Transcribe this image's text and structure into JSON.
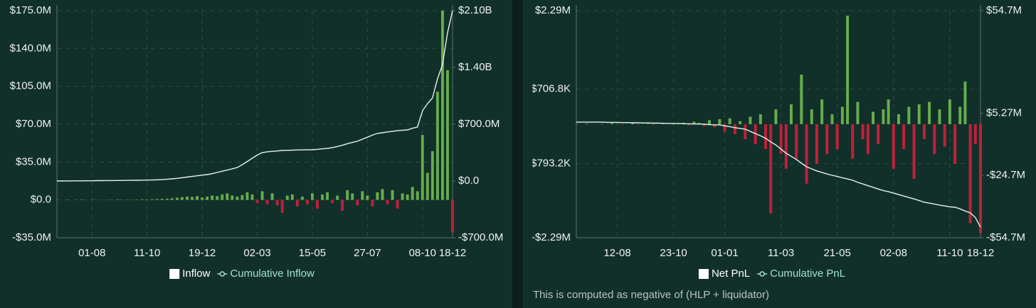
{
  "chart_data": [
    {
      "type": "combo",
      "categories": [
        null,
        null,
        null,
        null,
        null,
        null,
        null,
        "01-08",
        null,
        null,
        null,
        null,
        null,
        null,
        null,
        null,
        null,
        null,
        "11-10",
        null,
        null,
        null,
        null,
        null,
        null,
        null,
        null,
        null,
        null,
        "19-12",
        null,
        null,
        null,
        null,
        null,
        null,
        null,
        null,
        null,
        null,
        "02-03",
        null,
        null,
        null,
        null,
        null,
        null,
        null,
        null,
        null,
        null,
        "15-05",
        null,
        null,
        null,
        null,
        null,
        null,
        null,
        null,
        null,
        null,
        "27-07",
        null,
        null,
        null,
        null,
        null,
        null,
        null,
        null,
        null,
        null,
        "08-10",
        null,
        null,
        null,
        null,
        null,
        "18-12"
      ],
      "series": [
        {
          "name": "Inflow",
          "type": "bar",
          "color": "#67ad4c",
          "negative_color": "#c21f3a",
          "legend_color": "#ffffff",
          "values": [
            100000,
            0,
            200000,
            0,
            100000,
            300000,
            0,
            200000,
            100000,
            0,
            200000,
            100000,
            300000,
            200000,
            100000,
            200000,
            300000,
            500000,
            400000,
            600000,
            800000,
            1000000,
            1200000,
            1500000,
            2000000,
            2500000,
            3000000,
            2800000,
            3500000,
            2200000,
            3000000,
            4000000,
            3500000,
            5000000,
            6000000,
            4000000,
            3000000,
            4500000,
            7000000,
            5000000,
            -3000000,
            8000000,
            -4000000,
            6000000,
            -5000000,
            -12000000,
            4000000,
            5000000,
            -6000000,
            3000000,
            -4000000,
            6000000,
            -8000000,
            5000000,
            7000000,
            -3000000,
            4000000,
            -10000000,
            9000000,
            6000000,
            -5000000,
            8000000,
            4000000,
            -6000000,
            7000000,
            10000000,
            -4000000,
            9000000,
            -8000000,
            6000000,
            5000000,
            12000000,
            8000000,
            60000000,
            25000000,
            45000000,
            100000000,
            175000000,
            120000000,
            -30000000
          ]
        },
        {
          "name": "Cumulative Inflow",
          "type": "line",
          "axis": "y2",
          "color": "#e4f3ec",
          "legend_color": "#9fe3c9",
          "values": [
            0,
            0,
            1000000,
            1000000,
            2000000,
            2000000,
            3000000,
            3000000,
            4000000,
            4000000,
            5000000,
            5000000,
            6000000,
            6000000,
            7000000,
            8000000,
            9000000,
            10000000,
            11000000,
            12000000,
            14000000,
            17000000,
            21000000,
            26000000,
            32000000,
            40000000,
            48000000,
            56000000,
            64000000,
            72000000,
            79000000,
            90000000,
            105000000,
            120000000,
            135000000,
            150000000,
            166000000,
            200000000,
            240000000,
            280000000,
            320000000,
            350000000,
            360000000,
            365000000,
            370000000,
            376000000,
            378000000,
            380000000,
            382000000,
            383000000,
            384000000,
            385000000,
            390000000,
            396000000,
            402000000,
            411000000,
            425000000,
            440000000,
            460000000,
            475000000,
            490000000,
            515000000,
            540000000,
            565000000,
            586000000,
            595000000,
            605000000,
            612000000,
            620000000,
            625000000,
            630000000,
            650000000,
            665000000,
            866000000,
            954000000,
            1024000000,
            1260000000,
            1435000000,
            1829000000,
            2100000000
          ]
        }
      ],
      "ylim": [
        -35000000,
        175000000
      ],
      "yticks": [
        {
          "value": -35000000,
          "label": "-$35.0M"
        },
        {
          "value": 0,
          "label": "$0.0"
        },
        {
          "value": 35000000,
          "label": "$35.0M"
        },
        {
          "value": 70000000,
          "label": "$70.0M"
        },
        {
          "value": 105000000,
          "label": "$105.0M"
        },
        {
          "value": 140000000,
          "label": "$140.0M"
        },
        {
          "value": 175000000,
          "label": "$175.0M"
        }
      ],
      "y2lim": [
        -700000000,
        2100000000
      ],
      "y2ticks": [
        {
          "value": -700000000,
          "label": "-$700.0M"
        },
        {
          "value": 0,
          "label": "$0.0"
        },
        {
          "value": 700000000,
          "label": "$700.0M"
        },
        {
          "value": 1400000000,
          "label": "$1.40B"
        },
        {
          "value": 2100000000,
          "label": "$2.10B"
        }
      ],
      "grid": true
    },
    {
      "type": "combo",
      "categories": [
        null,
        null,
        null,
        null,
        null,
        null,
        null,
        null,
        "12-08",
        null,
        null,
        null,
        null,
        null,
        null,
        null,
        null,
        null,
        null,
        "23-10",
        null,
        null,
        null,
        null,
        null,
        null,
        null,
        null,
        null,
        "01-01",
        null,
        null,
        null,
        null,
        null,
        null,
        null,
        null,
        null,
        null,
        "11-03",
        null,
        null,
        null,
        null,
        null,
        null,
        null,
        null,
        null,
        null,
        "21-05",
        null,
        null,
        null,
        null,
        null,
        null,
        null,
        null,
        null,
        null,
        "02-08",
        null,
        null,
        null,
        null,
        null,
        null,
        null,
        null,
        null,
        null,
        "11-10",
        null,
        null,
        null,
        null,
        null,
        "18-12"
      ],
      "series": [
        {
          "name": "Net PnL",
          "type": "bar",
          "color": "#67ad4c",
          "negative_color": "#c21f3a",
          "legend_color": "#ffffff",
          "values": [
            5000,
            0,
            10000,
            -5000,
            0,
            8000,
            -3000,
            20000,
            5000,
            -10000,
            0,
            15000,
            -8000,
            5000,
            10000,
            -12000,
            0,
            6000,
            -5000,
            8000,
            15000,
            30000,
            -20000,
            50000,
            25000,
            -40000,
            80000,
            -60000,
            100000,
            -150000,
            120000,
            -200000,
            60000,
            -300000,
            150000,
            -400000,
            200000,
            -500000,
            -1800000,
            300000,
            -600000,
            -900000,
            400000,
            -700000,
            1000000,
            -1200000,
            300000,
            -800000,
            500000,
            -600000,
            200000,
            -500000,
            350000,
            2190000,
            -700000,
            450000,
            -300000,
            -600000,
            250000,
            -400000,
            300000,
            500000,
            -900000,
            200000,
            -500000,
            350000,
            -1100000,
            400000,
            -300000,
            450000,
            -600000,
            300000,
            -450000,
            500000,
            -800000,
            350000,
            860000,
            -2000000,
            -400000,
            -2200000
          ]
        },
        {
          "name": "Cumulative PnL",
          "type": "line",
          "axis": "y2",
          "color": "#e4f3ec",
          "legend_color": "#9fe3c9",
          "values": [
            1000000,
            1000000,
            1000000,
            1000000,
            1000000,
            1000000,
            900000,
            900000,
            900000,
            800000,
            800000,
            700000,
            700000,
            600000,
            600000,
            500000,
            500000,
            400000,
            400000,
            300000,
            300000,
            200000,
            200000,
            100000,
            100000,
            0,
            -200000,
            -300000,
            -300000,
            -800000,
            -1200000,
            -1700000,
            -2000000,
            -2400000,
            -3500000,
            -4500000,
            -5600000,
            -6800000,
            -8500000,
            -10000000,
            -12000000,
            -14000000,
            -15500000,
            -17000000,
            -18800000,
            -20500000,
            -21500000,
            -22500000,
            -23200000,
            -24000000,
            -24600000,
            -25200000,
            -25800000,
            -26400000,
            -27000000,
            -28000000,
            -28800000,
            -29600000,
            -30400000,
            -31200000,
            -32000000,
            -32500000,
            -33200000,
            -33900000,
            -34600000,
            -35300000,
            -36000000,
            -36800000,
            -37600000,
            -38000000,
            -38500000,
            -39000000,
            -39400000,
            -39800000,
            -40000000,
            -40800000,
            -41800000,
            -42700000,
            -45000000,
            -49600000
          ]
        }
      ],
      "ylim": [
        -2290000,
        2290000
      ],
      "yticks": [
        {
          "value": -2290000,
          "label": "-$2.29M"
        },
        {
          "value": -793200,
          "label": "-$793.2K"
        },
        {
          "value": 706800,
          "label": "$706.8K"
        },
        {
          "value": 2290000,
          "label": "$2.29M"
        }
      ],
      "y2lim": [
        -54700000,
        54700000
      ],
      "y2ticks": [
        {
          "value": -54700000,
          "label": "-$54.7M"
        },
        {
          "value": -24700000,
          "label": "-$24.7M"
        },
        {
          "value": 5270000,
          "label": "$5.27M"
        },
        {
          "value": 54700000,
          "label": "$54.7M"
        }
      ],
      "grid": true,
      "note": "This is computed as negative of (HLP + liquidator)"
    }
  ]
}
